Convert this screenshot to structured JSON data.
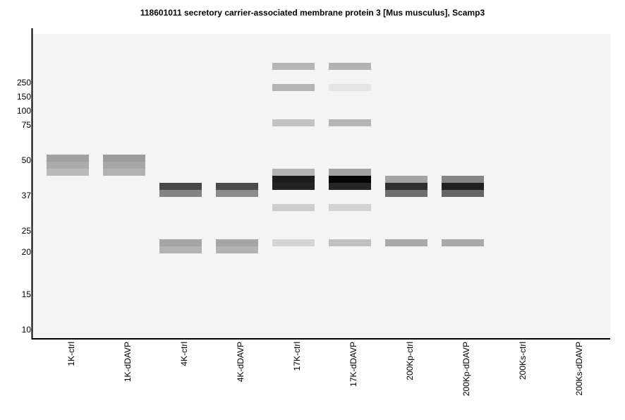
{
  "chart_data": {
    "type": "table",
    "title": "118601011 secretory carrier-associated membrane protein 3 [Mus musculus], Scamp3",
    "xlabel": "",
    "ylabel": "",
    "y_ticks": [
      250,
      150,
      100,
      75,
      50,
      37,
      25,
      20,
      15,
      10
    ],
    "lanes": [
      "1K-ctrl",
      "1K-dDAVP",
      "4K-ctrl",
      "4K-dDAVP",
      "17K-ctrl",
      "17K-dDAVP",
      "200Kp-ctrl",
      "200Kp-dDAVP",
      "200Ks-ctrl",
      "200Ks-dDAVP"
    ],
    "bands": [
      {
        "lane": 0,
        "mw": 51,
        "color": "#a1a1a1"
      },
      {
        "lane": 0,
        "mw": 47.9,
        "color": "#aaabaa"
      },
      {
        "lane": 0,
        "mw": 45.3,
        "color": "#b9bab9"
      },
      {
        "lane": 1,
        "mw": 51,
        "color": "#9c9c9c"
      },
      {
        "lane": 1,
        "mw": 47.9,
        "color": "#a6a6a6"
      },
      {
        "lane": 1,
        "mw": 45.3,
        "color": "#b3b3b3"
      },
      {
        "lane": 2,
        "mw": 40.1,
        "color": "#484848"
      },
      {
        "lane": 2,
        "mw": 37.5,
        "color": "#838383"
      },
      {
        "lane": 2,
        "mw": 22,
        "color": "#a4a5a4"
      },
      {
        "lane": 2,
        "mw": 20.3,
        "color": "#b3b3b3"
      },
      {
        "lane": 3,
        "mw": 40.1,
        "color": "#4a4b4a"
      },
      {
        "lane": 3,
        "mw": 37.5,
        "color": "#8a8b8a"
      },
      {
        "lane": 3,
        "mw": 22,
        "color": "#a6a6a6"
      },
      {
        "lane": 3,
        "mw": 20.3,
        "color": "#b2b2b2"
      },
      {
        "lane": 4,
        "mw": 360,
        "color": "#b4b5b4"
      },
      {
        "lane": 4,
        "mw": 210,
        "color": "#b5b5b5"
      },
      {
        "lane": 4,
        "mw": 77.5,
        "color": "#c1c2c1"
      },
      {
        "lane": 4,
        "mw": 45.3,
        "color": "#b5b5b5"
      },
      {
        "lane": 4,
        "mw": 42.7,
        "color": "#1c1d1c"
      },
      {
        "lane": 4,
        "mw": 40.1,
        "color": "#232323"
      },
      {
        "lane": 4,
        "mw": 32.7,
        "color": "#cdcece"
      },
      {
        "lane": 4,
        "mw": 22,
        "color": "#d4d4d4"
      },
      {
        "lane": 5,
        "mw": 360,
        "color": "#b2b2b2"
      },
      {
        "lane": 5,
        "mw": 210,
        "color": "#e6e6e6"
      },
      {
        "lane": 5,
        "mw": 77.5,
        "color": "#b5b5b5"
      },
      {
        "lane": 5,
        "mw": 45.3,
        "color": "#a3a3a3"
      },
      {
        "lane": 5,
        "mw": 42.7,
        "color": "#030303"
      },
      {
        "lane": 5,
        "mw": 40.1,
        "color": "#242525"
      },
      {
        "lane": 5,
        "mw": 32.7,
        "color": "#d2d3d2"
      },
      {
        "lane": 5,
        "mw": 22,
        "color": "#c0c0c0"
      },
      {
        "lane": 6,
        "mw": 42.7,
        "color": "#a2a2a2"
      },
      {
        "lane": 6,
        "mw": 40.1,
        "color": "#2d2e2d"
      },
      {
        "lane": 6,
        "mw": 37.5,
        "color": "#6d6e6d"
      },
      {
        "lane": 6,
        "mw": 22,
        "color": "#a8a8a8"
      },
      {
        "lane": 7,
        "mw": 42.7,
        "color": "#858585"
      },
      {
        "lane": 7,
        "mw": 40.1,
        "color": "#1f2020"
      },
      {
        "lane": 7,
        "mw": 37.5,
        "color": "#656565"
      },
      {
        "lane": 7,
        "mw": 22,
        "color": "#a8a8a8"
      }
    ],
    "grid": false,
    "background": "#f4f4f4"
  }
}
